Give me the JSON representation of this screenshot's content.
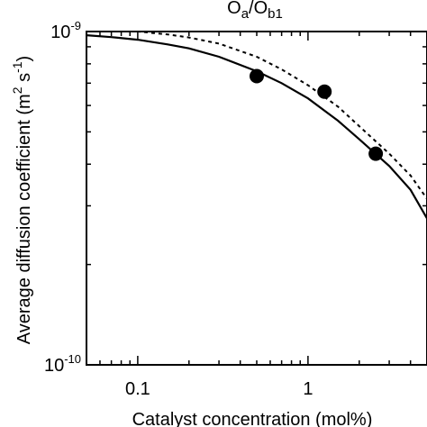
{
  "chart_data": {
    "type": "line",
    "title": "O_a/O_b1",
    "title_parts": {
      "main_a": "O",
      "sub_a": "a",
      "slash": "/",
      "main_b": "O",
      "sub_b": "b1"
    },
    "xlabel": "Catalyst concentration (mol%)",
    "ylabel": {
      "prefix": "Average diffusion coefficient (m",
      "sup1": "2",
      "middle": " s",
      "sup2": "-1",
      "suffix": ")"
    },
    "x_scale": "log",
    "y_scale": "log",
    "xlim": [
      0.05,
      5
    ],
    "ylim": [
      1e-10,
      1e-09
    ],
    "grid": false,
    "x_ticks": [
      {
        "value": 0.1,
        "label": "0.1"
      },
      {
        "value": 1,
        "label": "1"
      }
    ],
    "y_ticks": [
      {
        "value": 1e-09,
        "base": "10",
        "exp": "-9"
      },
      {
        "value": 1e-10,
        "base": "10",
        "exp": "-10"
      }
    ],
    "series": [
      {
        "style": "solid",
        "x": [
          0.05,
          0.07,
          0.1,
          0.15,
          0.2,
          0.3,
          0.5,
          0.7,
          1.0,
          1.5,
          2.0,
          3.0,
          4.0,
          5.0
        ],
        "y": [
          9.75e-10,
          9.62e-10,
          9.45e-10,
          9.15e-10,
          8.9e-10,
          8.4e-10,
          7.6e-10,
          7e-10,
          6.3e-10,
          5.4e-10,
          4.75e-10,
          3.95e-10,
          3.35e-10,
          2.75e-10
        ]
      },
      {
        "style": "dashed",
        "x": [
          0.05,
          0.1,
          0.15,
          0.2,
          0.3,
          0.5,
          0.7,
          1.0,
          1.5,
          2.0,
          3.0,
          4.0,
          5.0
        ],
        "y": [
          1e-09,
          1e-09,
          9.8e-10,
          9.6e-10,
          9.2e-10,
          8.4e-10,
          7.7e-10,
          6.9e-10,
          5.95e-10,
          5.2e-10,
          4.3e-10,
          3.7e-10,
          3.15e-10
        ]
      },
      {
        "style": "markers",
        "x": [
          0.5,
          1.25,
          2.5
        ],
        "y": [
          7.35e-10,
          6.6e-10,
          4.3e-10
        ]
      }
    ]
  }
}
